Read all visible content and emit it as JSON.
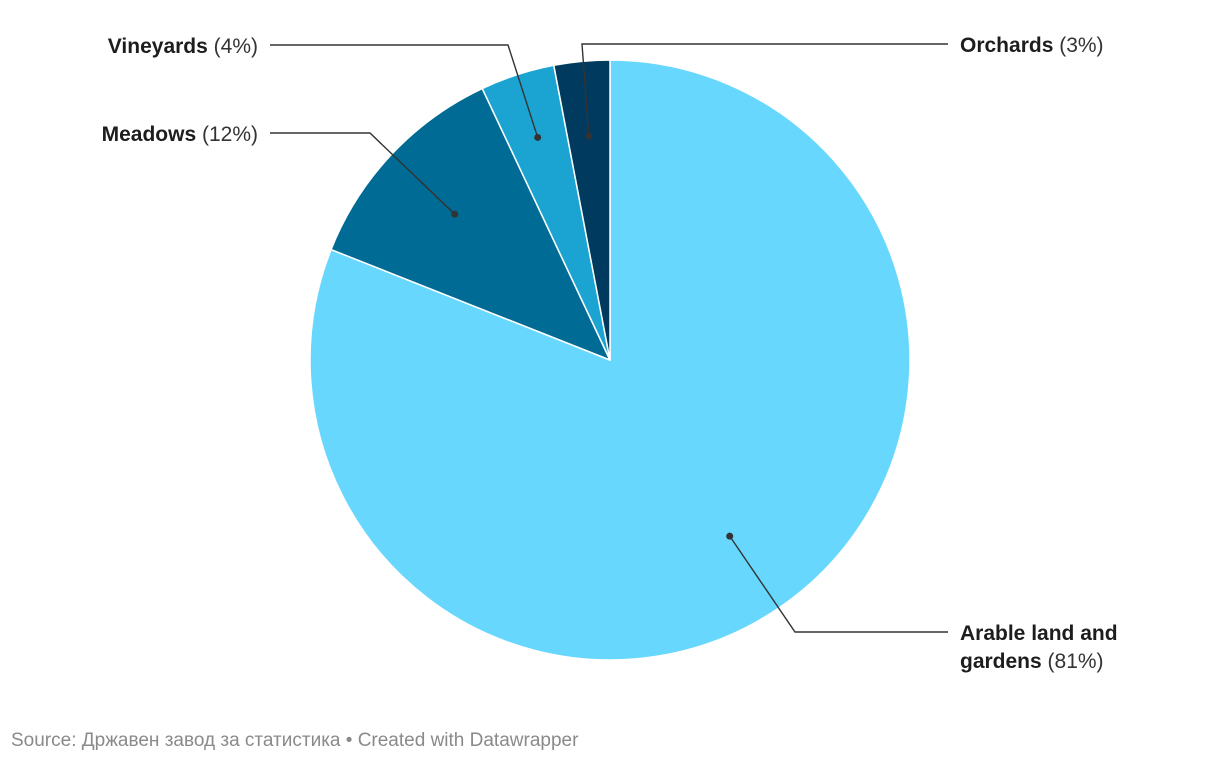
{
  "chart_data": {
    "type": "pie",
    "title": "",
    "slices": [
      {
        "label": "Arable land and gardens",
        "value": 81,
        "color": "#68d7fd"
      },
      {
        "label": "Meadows",
        "value": 12,
        "color": "#006b95"
      },
      {
        "label": "Vineyards",
        "value": 4,
        "color": "#1ba4d1"
      },
      {
        "label": "Orchards",
        "value": 3,
        "color": "#003a5e"
      }
    ],
    "value_format": "percent",
    "start_angle_deg": 0,
    "direction": "clockwise",
    "labels": [
      {
        "name_lines": [
          "Arable land and",
          "gardens"
        ],
        "pct": "(81%)"
      },
      {
        "name_lines": [
          "Meadows"
        ],
        "pct": "(12%)"
      },
      {
        "name_lines": [
          "Vineyards"
        ],
        "pct": "(4%)"
      },
      {
        "name_lines": [
          "Orchards"
        ],
        "pct": "(3%)"
      }
    ]
  },
  "footer": {
    "text": "Source: Државен завод за статистика • Created with Datawrapper"
  }
}
